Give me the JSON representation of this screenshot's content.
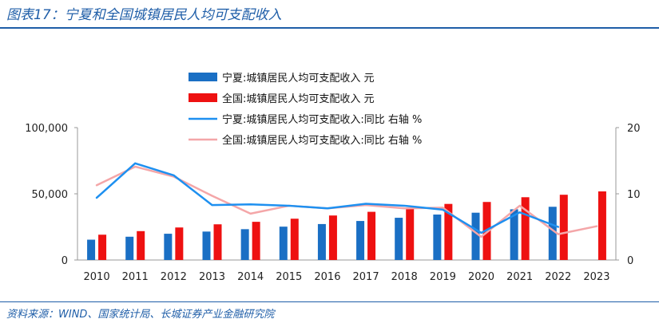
{
  "title": "图表17：宁夏和全国城镇居民人均可支配收入",
  "source": "资料来源：WIND、国家统计局、长城证券产业金融研究院",
  "chart_data": {
    "type": "bar",
    "categories": [
      "2010",
      "2011",
      "2012",
      "2013",
      "2014",
      "2015",
      "2016",
      "2017",
      "2018",
      "2019",
      "2020",
      "2021",
      "2022",
      "2023"
    ],
    "series": [
      {
        "name": "宁夏:城镇居民人均可支配收入 元",
        "kind": "bar",
        "axis": "left",
        "color": "#1a6fc4",
        "values": [
          15344,
          17579,
          19831,
          21476,
          23285,
          25186,
          27153,
          29472,
          31895,
          34328,
          35720,
          38291,
          40194,
          null
        ]
      },
      {
        "name": "全国:城镇居民人均可支配收入 元",
        "kind": "bar",
        "axis": "left",
        "color": "#ee1111",
        "values": [
          19109,
          21810,
          24565,
          26955,
          28844,
          31195,
          33616,
          36396,
          39251,
          42359,
          43834,
          47412,
          49283,
          51821
        ]
      },
      {
        "name": "宁夏:城镇居民人均可支配收入:同比 右轴 %",
        "kind": "line",
        "axis": "right",
        "color": "#1e90f0",
        "values": [
          9.4,
          14.6,
          12.8,
          8.3,
          8.4,
          8.2,
          7.8,
          8.5,
          8.2,
          7.6,
          4.1,
          7.2,
          5.0,
          null
        ]
      },
      {
        "name": "全国:城镇居民人均可支配收入:同比 右轴 %",
        "kind": "line",
        "axis": "right",
        "color": "#f4a6a8",
        "values": [
          11.3,
          14.1,
          12.6,
          9.7,
          7.0,
          8.2,
          7.8,
          8.3,
          7.8,
          7.9,
          3.5,
          8.2,
          3.9,
          5.1
        ]
      }
    ],
    "y_left": {
      "ylim": [
        0,
        100000
      ],
      "ticks": [
        0,
        50000,
        100000
      ],
      "tick_labels": [
        "0",
        "50,000",
        "100,000"
      ]
    },
    "y_right": {
      "ylim": [
        0,
        20
      ],
      "ticks": [
        0,
        10,
        20
      ],
      "tick_labels": [
        "0",
        "10",
        "20"
      ]
    },
    "grid": false,
    "legend": "top-center"
  }
}
